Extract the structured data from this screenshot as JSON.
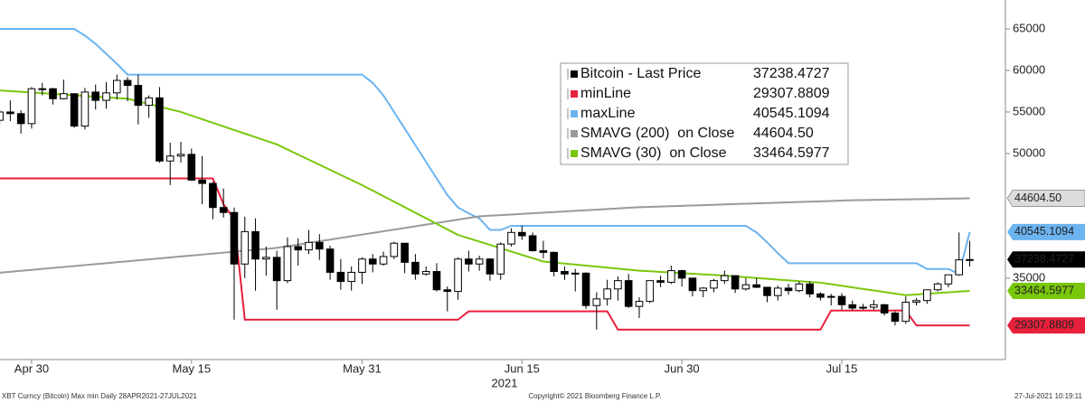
{
  "chart_data": {
    "type": "candlestick",
    "categories": [
      null,
      null,
      null,
      "Apr 30",
      null,
      null,
      null,
      null,
      null,
      null,
      null,
      null,
      null,
      null,
      null,
      null,
      null,
      null,
      "May 15",
      null,
      null,
      null,
      null,
      null,
      null,
      null,
      null,
      null,
      null,
      null,
      null,
      null,
      null,
      null,
      "May 31",
      null,
      null,
      null,
      null,
      null,
      null,
      null,
      null,
      null,
      null,
      null,
      null,
      null,
      null,
      "Jun 15",
      null,
      null,
      null,
      null,
      null,
      null,
      null,
      null,
      null,
      null,
      null,
      null,
      null,
      null,
      "Jun 30",
      null,
      null,
      null,
      null,
      null,
      null,
      null,
      null,
      null,
      null,
      null,
      null,
      null,
      null,
      "Jul 15",
      null,
      null,
      null,
      null,
      null,
      null,
      null,
      null,
      null,
      null,
      null,
      null
    ],
    "year_label": "2021",
    "ylim": [
      25200,
      68480
    ],
    "yticks": [
      35000,
      50000,
      55000,
      60000,
      65000
    ],
    "series": [
      {
        "name": "Bitcoin - Last Price",
        "type": "candlestick",
        "color": "#000000",
        "open": [
          54000,
          55000,
          54800,
          53600,
          57800,
          57800,
          56600,
          57200,
          53300,
          57400,
          56400,
          57300,
          58800,
          58200,
          55800,
          56700,
          49100,
          49700,
          49900,
          46800,
          46400,
          43500,
          42900,
          36700,
          40600,
          37300,
          37500,
          34700,
          38800,
          38400,
          39300,
          38500,
          35700,
          34600,
          35700,
          37300,
          36700,
          37600,
          39200,
          36900,
          35500,
          35800,
          33600,
          33400,
          37300,
          36700,
          37300,
          35500,
          39100,
          40500,
          40100,
          38300,
          38100,
          35800,
          35500,
          35600,
          31700,
          32500,
          33700,
          34700,
          31600,
          32200,
          34700,
          34500,
          35900,
          35000,
          33500,
          33800,
          34700,
          35300,
          33700,
          34200,
          33900,
          32900,
          33800,
          33500,
          34300,
          33100,
          32700,
          32800,
          31800,
          31400,
          31500,
          31800,
          30800,
          29800,
          32100,
          32300,
          33600,
          34300,
          35400,
          37200
        ],
        "high": [
          55400,
          56400,
          55200,
          58000,
          58500,
          57900,
          58900,
          57200,
          57900,
          58300,
          58600,
          59500,
          59200,
          59500,
          57000,
          58000,
          51300,
          51400,
          50600,
          49700,
          46600,
          45800,
          43500,
          42400,
          42200,
          38800,
          38300,
          39900,
          39800,
          40800,
          40300,
          38900,
          37300,
          36400,
          37500,
          37900,
          38200,
          39400,
          39200,
          37900,
          36400,
          36800,
          34000,
          37500,
          38300,
          37700,
          37400,
          39300,
          41000,
          41300,
          40500,
          39500,
          38200,
          36400,
          36100,
          35700,
          33300,
          34800,
          35200,
          35500,
          32700,
          34700,
          35300,
          36500,
          36000,
          35000,
          33900,
          34900,
          35900,
          35300,
          35000,
          35000,
          33900,
          34100,
          34300,
          34600,
          34600,
          33300,
          33100,
          33200,
          32300,
          31900,
          32400,
          31900,
          31000,
          32800,
          32600,
          33600,
          34500,
          35400,
          40500,
          39500
        ],
        "low": [
          53300,
          53900,
          52400,
          53000,
          57000,
          55900,
          56500,
          53100,
          52900,
          55300,
          55400,
          56500,
          56300,
          53500,
          54300,
          48900,
          46200,
          48900,
          46700,
          43900,
          42100,
          42300,
          30000,
          35000,
          33500,
          35300,
          31200,
          34400,
          36500,
          37900,
          37200,
          34800,
          33600,
          33500,
          34300,
          35700,
          36500,
          37300,
          35600,
          34800,
          35300,
          33400,
          31000,
          32400,
          35800,
          35900,
          34700,
          34800,
          38800,
          39600,
          38200,
          37400,
          35200,
          34800,
          33400,
          31300,
          28800,
          31700,
          32300,
          31400,
          30200,
          32000,
          33900,
          34300,
          34000,
          32800,
          32700,
          33300,
          34300,
          33200,
          33500,
          33800,
          32100,
          32300,
          33000,
          33300,
          32700,
          32300,
          31700,
          31200,
          31100,
          31200,
          31200,
          30500,
          29300,
          29500,
          31700,
          31900,
          33400,
          33900,
          35300,
          36400
        ],
        "close": [
          55000,
          54800,
          53600,
          57800,
          57800,
          56600,
          57200,
          53300,
          57400,
          56400,
          57300,
          58800,
          58200,
          55800,
          56700,
          49100,
          49700,
          49900,
          46800,
          46400,
          43500,
          42900,
          36700,
          40600,
          37300,
          37500,
          34700,
          38800,
          38400,
          39300,
          38500,
          35700,
          34600,
          35700,
          37300,
          36700,
          37600,
          39200,
          36900,
          35500,
          35800,
          33600,
          33400,
          37300,
          36700,
          37300,
          35500,
          39100,
          40500,
          40100,
          38300,
          38100,
          35800,
          35500,
          35600,
          31700,
          32500,
          33700,
          34700,
          31600,
          32200,
          34700,
          34500,
          35900,
          35000,
          33500,
          33800,
          34700,
          35300,
          33700,
          34200,
          33900,
          32900,
          33800,
          33500,
          34300,
          33100,
          32700,
          32800,
          31800,
          31400,
          31500,
          31800,
          30800,
          29800,
          32100,
          32300,
          33600,
          34300,
          35400,
          37200,
          37238.4727
        ],
        "last": {
          "value": 37238.4727,
          "label": "37238.4727"
        }
      },
      {
        "name": "minLine",
        "type": "line",
        "color": "#e8203c",
        "values": [
          47000,
          47000,
          47000,
          47000,
          47000,
          47000,
          47000,
          47000,
          47000,
          47000,
          47000,
          47000,
          47000,
          47000,
          47000,
          47000,
          47000,
          47000,
          47000,
          47000,
          47000,
          43900,
          42100,
          30000,
          30000,
          30000,
          30000,
          30000,
          30000,
          30000,
          30000,
          30000,
          30000,
          30000,
          30000,
          30000,
          30000,
          30000,
          30000,
          30000,
          30000,
          30000,
          30000,
          30000,
          31000,
          31000,
          31000,
          31000,
          31000,
          31000,
          31000,
          31000,
          31000,
          31000,
          31000,
          31000,
          31000,
          31000,
          28800,
          28800,
          28800,
          28800,
          28800,
          28800,
          28800,
          28800,
          28800,
          28800,
          28800,
          28800,
          28800,
          28800,
          28800,
          28800,
          28800,
          28800,
          28800,
          28800,
          31100,
          31100,
          31100,
          31100,
          31100,
          31100,
          31100,
          31100,
          29307.8809,
          29307.8809,
          29307.8809,
          29307.8809,
          29307.8809,
          29307.8809
        ],
        "last": {
          "value": 29307.8809,
          "label": "29307.8809"
        }
      },
      {
        "name": "maxLine",
        "type": "line",
        "color": "#6cb4f0",
        "values": [
          65000,
          65000,
          65000,
          65000,
          65000,
          65000,
          65000,
          65000,
          64200,
          63200,
          62000,
          60800,
          59500,
          59500,
          59500,
          59500,
          59500,
          59500,
          59500,
          59500,
          59500,
          59500,
          59500,
          59500,
          59500,
          59500,
          59500,
          59500,
          59500,
          59500,
          59500,
          59500,
          59500,
          59500,
          59500,
          58500,
          57000,
          55000,
          53000,
          51000,
          49000,
          47000,
          45000,
          43500,
          42800,
          42200,
          40800,
          40800,
          41300,
          41300,
          41300,
          41300,
          41300,
          41300,
          41300,
          41300,
          41300,
          41300,
          41300,
          41300,
          41300,
          41300,
          41300,
          41300,
          41300,
          41300,
          41300,
          41300,
          41300,
          41300,
          41300,
          40500,
          39300,
          38000,
          36800,
          36800,
          36800,
          36800,
          36800,
          36800,
          36800,
          36800,
          36800,
          36800,
          36800,
          36800,
          36800,
          36100,
          36100,
          36100,
          35500,
          40545.1094
        ],
        "last": {
          "value": 40545.1094,
          "label": "40545.1094"
        }
      },
      {
        "name": "SMAVG (200)  on Close",
        "type": "line",
        "color": "#9a9a9a",
        "values": [
          35650,
          35765,
          35880,
          35995,
          36110,
          36225,
          36340,
          36455,
          36570,
          36685,
          36800,
          36915,
          37030,
          37145,
          37260,
          37375,
          37490,
          37605,
          37720,
          37835,
          37950,
          38065,
          38180,
          38295,
          38410,
          38525,
          38640,
          38840,
          39040,
          39240,
          39440,
          39640,
          39840,
          40040,
          40240,
          40440,
          40640,
          40840,
          41040,
          41240,
          41440,
          41640,
          41840,
          42040,
          42240,
          42440,
          42513,
          42586,
          42659,
          42732,
          42805,
          42878,
          42951,
          43024,
          43097,
          43170,
          43243,
          43316,
          43389,
          43462,
          43535,
          43577,
          43619,
          43661,
          43703,
          43745,
          43787,
          43829,
          43871,
          43913,
          43955,
          43997,
          44039,
          44081,
          44123,
          44165,
          44207,
          44249,
          44291,
          44333,
          44375,
          44396,
          44417,
          44438,
          44459,
          44480,
          44501,
          44522,
          44543,
          44564,
          44585,
          44604.5
        ],
        "last": {
          "value": 44604.5,
          "label": "44604.50"
        }
      },
      {
        "name": "SMAVG (30)  on Close",
        "type": "line",
        "color": "#7ac70c",
        "values": [
          57600,
          57517,
          57433,
          57350,
          57267,
          57183,
          57100,
          57017,
          56933,
          56850,
          56767,
          56683,
          56600,
          56280,
          55960,
          55640,
          55320,
          55000,
          54567,
          54133,
          53700,
          53267,
          52833,
          52400,
          51967,
          51533,
          51100,
          50488,
          49875,
          49263,
          48650,
          48038,
          47425,
          46813,
          46200,
          45533,
          44867,
          44200,
          43533,
          42867,
          42200,
          41533,
          40867,
          40200,
          39800,
          39400,
          39000,
          38600,
          38200,
          37800,
          37400,
          37000,
          36878,
          36756,
          36633,
          36511,
          36389,
          36267,
          36144,
          36022,
          35900,
          35825,
          35750,
          35675,
          35600,
          35525,
          35450,
          35375,
          35300,
          35206,
          35111,
          35017,
          34922,
          34828,
          34733,
          34639,
          34544,
          34450,
          34263,
          34075,
          33888,
          33700,
          33513,
          33325,
          33138,
          32950,
          33036,
          33122,
          33207,
          33293,
          33379,
          33464.5977
        ],
        "last": {
          "value": 33464.5977,
          "label": "33464.5977"
        }
      }
    ],
    "footer": {
      "left": "XBT Curncy (Bitcoin) Max min  Daily 28APR2021-27JUL2021",
      "center": "Copyright© 2021 Bloomberg Finance L.P.",
      "right": "27-Jul-2021 10:19:11"
    }
  }
}
